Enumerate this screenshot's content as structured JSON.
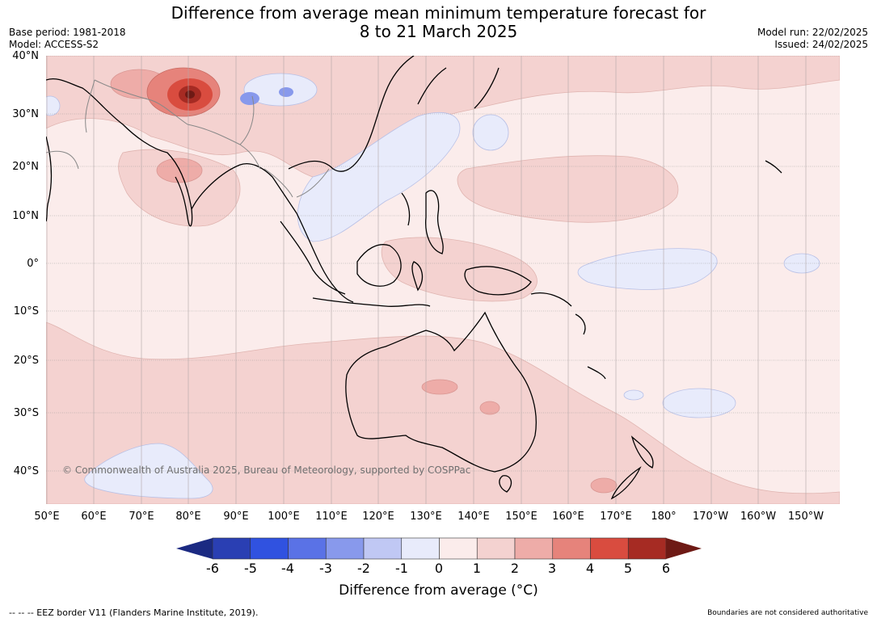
{
  "title_line1": "Difference from average mean minimum temperature forecast for",
  "title_line2": "8 to 21 March 2025",
  "base_period": "Base period: 1981-2018",
  "model": "Model: ACCESS-S2",
  "model_run": "Model run: 22/02/2025",
  "issued": "Issued: 24/02/2025",
  "copyright": "© Commonwealth of Australia 2025, Bureau of Meteorology, supported by COSPPac",
  "lat_labels": [
    "40°N",
    "30°N",
    "20°N",
    "10°N",
    "0°",
    "10°S",
    "20°S",
    "30°S",
    "40°S"
  ],
  "lon_labels": [
    "50°E",
    "60°E",
    "70°E",
    "80°E",
    "90°E",
    "100°E",
    "110°E",
    "120°E",
    "130°E",
    "140°E",
    "150°E",
    "160°E",
    "170°E",
    "180°",
    "170°W",
    "160°W",
    "150°W"
  ],
  "colorbar_ticks": [
    "-6",
    "-5",
    "-4",
    "-3",
    "-2",
    "-1",
    "0",
    "1",
    "2",
    "3",
    "4",
    "5",
    "6"
  ],
  "colorbar_colors": [
    "#1b2a82",
    "#2a3fb3",
    "#3052e0",
    "#5a72e6",
    "#8899ec",
    "#c0c8f4",
    "#e8ebfb",
    "#fbeceb",
    "#f4d2d0",
    "#eeaca8",
    "#e6837b",
    "#d94c3f",
    "#a62b23",
    "#6e1a15"
  ],
  "colorbar_label": "Difference from average (°C)",
  "eez_note": "--  --  -- EEZ border V11 (Flanders Marine Institute, 2019).",
  "boundaries_note": "Boundaries are not considered authoritative"
}
